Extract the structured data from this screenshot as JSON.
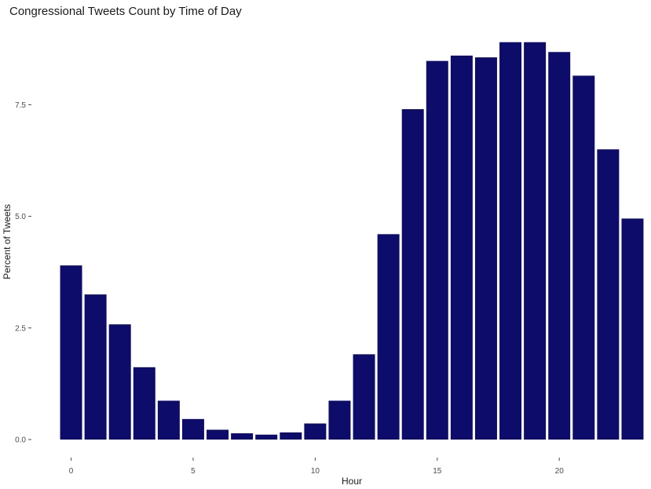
{
  "chart_data": {
    "type": "bar",
    "title": "Congressional Tweets Count by Time of Day",
    "xlabel": "Hour",
    "ylabel": "Percent of Tweets",
    "x": [
      0,
      1,
      2,
      3,
      4,
      5,
      6,
      7,
      8,
      9,
      10,
      11,
      12,
      13,
      14,
      15,
      16,
      17,
      18,
      19,
      20,
      21,
      22,
      23
    ],
    "values": [
      3.9,
      3.25,
      2.58,
      1.62,
      0.87,
      0.46,
      0.22,
      0.14,
      0.11,
      0.16,
      0.36,
      0.87,
      1.91,
      4.6,
      7.4,
      8.48,
      8.6,
      8.56,
      8.9,
      8.9,
      8.68,
      8.15,
      6.5,
      4.95
    ],
    "xticks": [
      0,
      5,
      10,
      15,
      20
    ],
    "xtick_labels": [
      "0",
      "5",
      "10",
      "15",
      "20"
    ],
    "yticks": [
      0,
      2.5,
      5,
      7.5
    ],
    "ytick_labels": [
      "0.0",
      "2.5",
      "5.0",
      "7.5"
    ],
    "ylim": [
      0,
      9.3
    ],
    "xlim": [
      -0.5,
      23.5
    ],
    "bar_color": "#0e0c6a",
    "grid": false,
    "legend": "none"
  }
}
